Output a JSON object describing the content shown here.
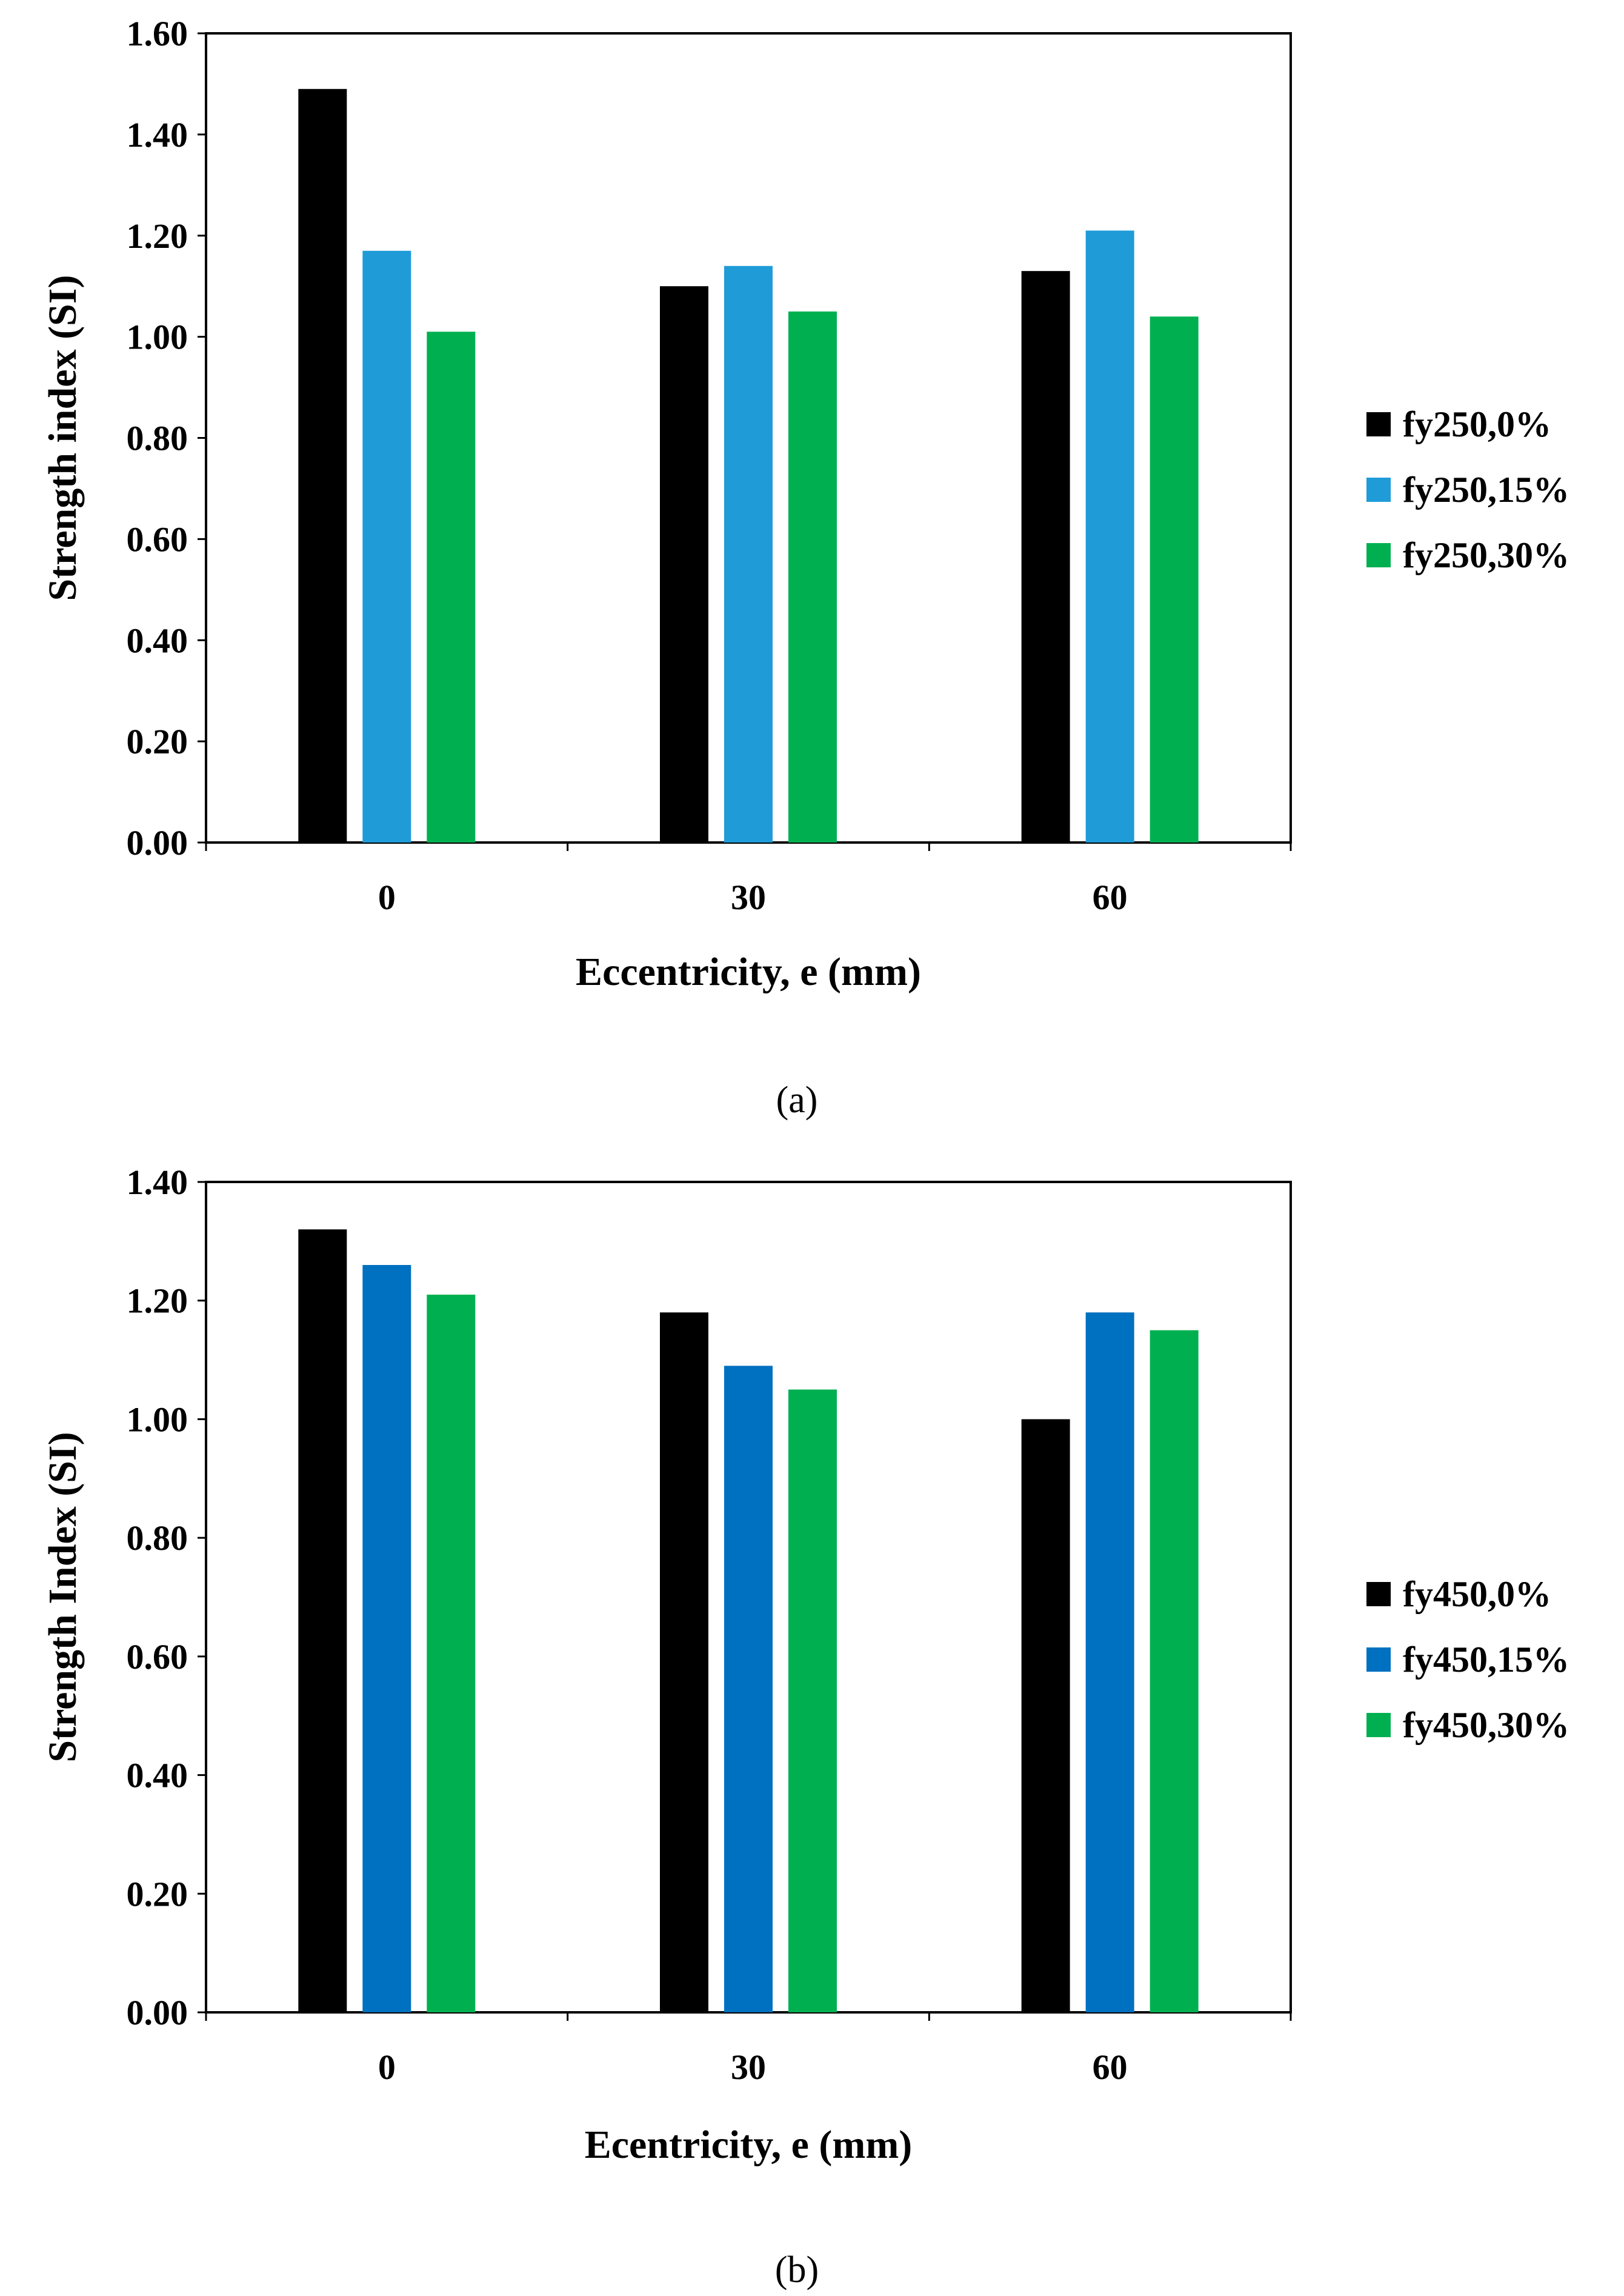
{
  "chart_data": [
    {
      "type": "bar",
      "caption": "(a)",
      "xlabel": "Eccentricity, e (mm)",
      "ylabel": "Strength index (SI)",
      "categories": [
        "0",
        "30",
        "60"
      ],
      "ylim": [
        0,
        1.6
      ],
      "yticks": [
        "0.00",
        "0.20",
        "0.40",
        "0.60",
        "0.80",
        "1.00",
        "1.20",
        "1.40",
        "1.60"
      ],
      "grid": false,
      "legend_position": "right",
      "series": [
        {
          "name": "fy250,0%",
          "color": "#000000",
          "values": [
            1.49,
            1.1,
            1.13
          ]
        },
        {
          "name": "fy250,15%",
          "color": "#1F9CD8",
          "values": [
            1.17,
            1.14,
            1.21
          ]
        },
        {
          "name": "fy250,30%",
          "color": "#00B050",
          "values": [
            1.01,
            1.05,
            1.04
          ]
        }
      ]
    },
    {
      "type": "bar",
      "caption": "(b)",
      "xlabel": "Ecentricity, e (mm)",
      "ylabel": "Strength Index (SI)",
      "categories": [
        "0",
        "30",
        "60"
      ],
      "ylim": [
        0,
        1.4
      ],
      "yticks": [
        "0.00",
        "0.20",
        "0.40",
        "0.60",
        "0.80",
        "1.00",
        "1.20",
        "1.40"
      ],
      "grid": false,
      "legend_position": "right",
      "series": [
        {
          "name": "fy450,0%",
          "color": "#000000",
          "values": [
            1.32,
            1.18,
            1.0
          ]
        },
        {
          "name": "fy450,15%",
          "color": "#0070C0",
          "values": [
            1.26,
            1.09,
            1.18
          ]
        },
        {
          "name": "fy450,30%",
          "color": "#00B050",
          "values": [
            1.21,
            1.05,
            1.15
          ]
        }
      ]
    }
  ]
}
